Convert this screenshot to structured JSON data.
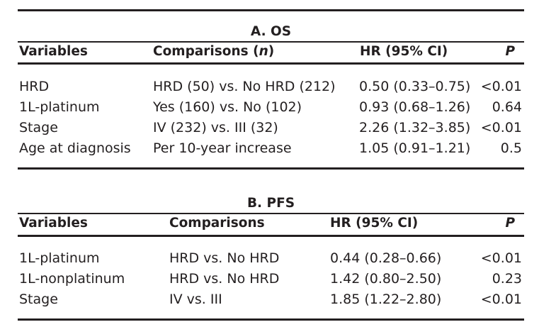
{
  "tables": [
    {
      "title": "A. OS",
      "headers": {
        "variables": "Variables",
        "comparisons_prefix": "Comparisons (",
        "comparisons_n": "n",
        "comparisons_suffix": ")",
        "hr": "HR (95% CI)",
        "p": "P"
      },
      "rows": [
        {
          "variable": "HRD",
          "comparison": "HRD (50) vs. No HRD (212)",
          "hr": "0.50 (0.33–0.75)",
          "p": "<0.01"
        },
        {
          "variable": "1L-platinum",
          "comparison": "Yes (160) vs. No (102)",
          "hr": "0.93 (0.68–1.26)",
          "p": "0.64"
        },
        {
          "variable": "Stage",
          "comparison": "IV (232) vs. III (32)",
          "hr": "2.26 (1.32–3.85)",
          "p": "<0.01"
        },
        {
          "variable": "Age at diagnosis",
          "comparison": "Per 10-year increase",
          "hr": "1.05 (0.91–1.21)",
          "p": "0.5"
        }
      ]
    },
    {
      "title": "B. PFS",
      "headers": {
        "variables": "Variables",
        "comparisons": "Comparisons",
        "hr": "HR (95% CI)",
        "p": "P"
      },
      "rows": [
        {
          "variable": "1L-platinum",
          "comparison": "HRD vs. No HRD",
          "hr": "0.44 (0.28–0.66)",
          "p": "<0.01"
        },
        {
          "variable": "1L-nonplatinum",
          "comparison": "HRD vs. No HRD",
          "hr": "1.42 (0.80–2.50)",
          "p": "0.23"
        },
        {
          "variable": "Stage",
          "comparison": "IV vs. III",
          "hr": "1.85 (1.22–2.80)",
          "p": "<0.01"
        }
      ]
    }
  ]
}
